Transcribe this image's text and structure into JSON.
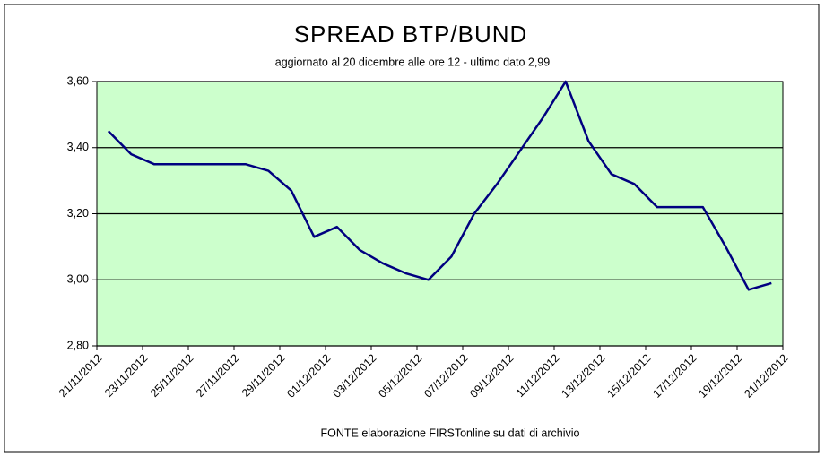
{
  "chart_data": {
    "type": "line",
    "title": "SPREAD  BTP/BUND",
    "subtitle": "aggiornato al 20  dicembre alle ore 12 - ultimo dato 2,99",
    "source": "FONTE elaborazione FIRSTonline su dati di archivio",
    "x": [
      "21/11/2012",
      "22/11/2012",
      "23/11/2012",
      "24/11/2012",
      "25/11/2012",
      "26/11/2012",
      "27/11/2012",
      "28/11/2012",
      "29/11/2012",
      "30/11/2012",
      "01/12/2012",
      "02/12/2012",
      "03/12/2012",
      "04/12/2012",
      "05/12/2012",
      "06/12/2012",
      "07/12/2012",
      "08/12/2012",
      "09/12/2012",
      "10/12/2012",
      "11/12/2012",
      "12/12/2012",
      "13/12/2012",
      "14/12/2012",
      "15/12/2012",
      "16/12/2012",
      "17/12/2012",
      "18/12/2012",
      "19/12/2012",
      "20/12/2012"
    ],
    "series": [
      {
        "name": "Spread BTP/Bund",
        "color": "#000080",
        "values": [
          3.45,
          3.38,
          3.35,
          3.35,
          3.35,
          3.35,
          3.35,
          3.33,
          3.27,
          3.13,
          3.16,
          3.09,
          3.05,
          3.02,
          3.0,
          3.07,
          3.2,
          3.29,
          3.39,
          3.49,
          3.6,
          3.42,
          3.32,
          3.29,
          3.22,
          3.22,
          3.22,
          3.1,
          2.97,
          2.99
        ]
      }
    ],
    "xlim": [
      "21/11/2012",
      "21/12/2012"
    ],
    "xticks": [
      "21/11/2012",
      "23/11/2012",
      "25/11/2012",
      "27/11/2012",
      "29/11/2012",
      "01/12/2012",
      "03/12/2012",
      "05/12/2012",
      "07/12/2012",
      "09/12/2012",
      "11/12/2012",
      "13/12/2012",
      "15/12/2012",
      "17/12/2012",
      "19/12/2012",
      "21/12/2012"
    ],
    "ylim": [
      2.8,
      3.6
    ],
    "yticks": [
      {
        "value": 2.8,
        "label": "2,80"
      },
      {
        "value": 3.0,
        "label": "3,00"
      },
      {
        "value": 3.2,
        "label": "3,20"
      },
      {
        "value": 3.4,
        "label": "3,40"
      },
      {
        "value": 3.6,
        "label": "3,60"
      }
    ],
    "grid": true,
    "plot_background": "#ccffcc"
  }
}
